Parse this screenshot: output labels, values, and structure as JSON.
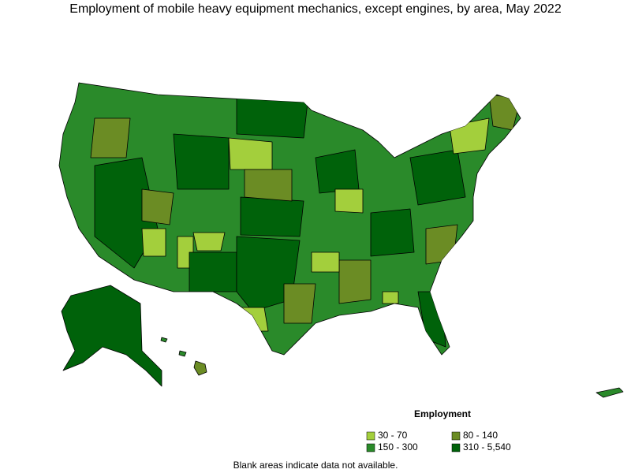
{
  "title": "Employment of mobile heavy equipment mechanics, except engines, by area, May 2022",
  "legend": {
    "title": "Employment",
    "items": [
      {
        "label": "30 - 70",
        "color": "#a3cf3c"
      },
      {
        "label": "80 - 140",
        "color": "#6b8c24"
      },
      {
        "label": "150 - 300",
        "color": "#2a8a2a"
      },
      {
        "label": "310 - 5,540",
        "color": "#00620a"
      }
    ]
  },
  "note": "Blank areas indicate data not available."
}
